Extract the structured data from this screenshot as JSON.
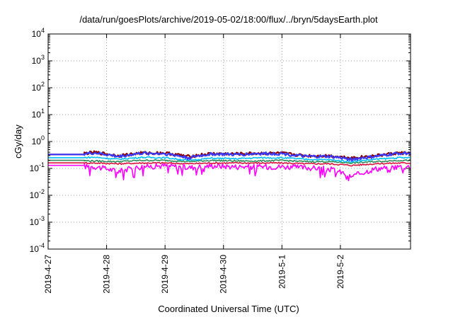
{
  "chart_data": {
    "type": "line",
    "title": "/data/run/goesPlots/archive/2019-05-02/18:00/flux/../bryn/5daysEarth.plot",
    "xlabel": "Coordinated Universal Time (UTC)",
    "ylabel": "cGy/day",
    "yscale": "log",
    "ylim": [
      0.0001,
      10000
    ],
    "xlim": [
      0,
      6.2
    ],
    "grid": true,
    "legend": "none",
    "x_ticks": [
      {
        "value": 0,
        "label": "2019-4-27"
      },
      {
        "value": 1,
        "label": "2019-4-28"
      },
      {
        "value": 2,
        "label": "2019-4-29"
      },
      {
        "value": 3,
        "label": "2019-4-30"
      },
      {
        "value": 4,
        "label": "2019-5-1"
      },
      {
        "value": 5,
        "label": "2019-5-2"
      }
    ],
    "y_ticks": [
      {
        "value": 0.0001,
        "base": "10",
        "exp": "-4"
      },
      {
        "value": 0.001,
        "base": "10",
        "exp": "-3"
      },
      {
        "value": 0.01,
        "base": "10",
        "exp": "-2"
      },
      {
        "value": 0.1,
        "base": "10",
        "exp": "-1"
      },
      {
        "value": 1,
        "base": "10",
        "exp": "0"
      },
      {
        "value": 10,
        "base": "10",
        "exp": "1"
      },
      {
        "value": 100,
        "base": "10",
        "exp": "2"
      },
      {
        "value": 1000,
        "base": "10",
        "exp": "3"
      },
      {
        "value": 10000,
        "base": "10",
        "exp": "4"
      }
    ],
    "series": [
      {
        "color": "#ff00ff",
        "baseline": 0.13,
        "x": [
          0,
          0.4,
          0.8,
          1.2,
          1.6,
          2.0,
          2.4,
          2.8,
          3.2,
          3.6,
          4.0,
          4.4,
          4.8,
          5.2,
          5.6,
          6.0,
          6.2
        ],
        "y": [
          0.13,
          0.13,
          0.12,
          0.08,
          0.12,
          0.13,
          0.11,
          0.13,
          0.12,
          0.12,
          0.12,
          0.11,
          0.1,
          0.05,
          0.1,
          0.12,
          0.12
        ]
      },
      {
        "color": "#dc143c",
        "baseline": 0.16,
        "x": [
          0,
          0.4,
          0.8,
          1.2,
          1.6,
          2.0,
          2.4,
          2.8,
          3.2,
          3.6,
          4.0,
          4.4,
          4.8,
          5.2,
          5.6,
          6.0,
          6.2
        ],
        "y": [
          0.16,
          0.16,
          0.16,
          0.15,
          0.16,
          0.16,
          0.15,
          0.16,
          0.16,
          0.16,
          0.16,
          0.15,
          0.15,
          0.13,
          0.15,
          0.16,
          0.16
        ]
      },
      {
        "color": "#2e8b57",
        "baseline": 0.2,
        "x": [
          0,
          0.4,
          0.8,
          1.2,
          1.6,
          2.0,
          2.4,
          2.8,
          3.2,
          3.6,
          4.0,
          4.4,
          4.8,
          5.2,
          5.6,
          6.0,
          6.2
        ],
        "y": [
          0.2,
          0.2,
          0.19,
          0.18,
          0.2,
          0.2,
          0.18,
          0.2,
          0.19,
          0.19,
          0.2,
          0.18,
          0.18,
          0.16,
          0.18,
          0.2,
          0.2
        ]
      },
      {
        "color": "#00bfff",
        "baseline": 0.25,
        "x": [
          0,
          0.4,
          0.8,
          1.2,
          1.6,
          2.0,
          2.4,
          2.8,
          3.2,
          3.6,
          4.0,
          4.4,
          4.8,
          5.2,
          5.6,
          6.0,
          6.2
        ],
        "y": [
          0.25,
          0.25,
          0.26,
          0.22,
          0.26,
          0.25,
          0.2,
          0.24,
          0.23,
          0.25,
          0.25,
          0.22,
          0.21,
          0.18,
          0.22,
          0.25,
          0.25
        ]
      },
      {
        "color": "#8b0000",
        "baseline": 0.33,
        "x": [
          0,
          0.4,
          0.8,
          1.2,
          1.6,
          2.0,
          2.4,
          2.8,
          3.2,
          3.6,
          4.0,
          4.4,
          4.8,
          5.2,
          5.6,
          6.0,
          6.2
        ],
        "y": [
          0.33,
          0.33,
          0.4,
          0.3,
          0.38,
          0.38,
          0.28,
          0.36,
          0.35,
          0.37,
          0.37,
          0.3,
          0.3,
          0.25,
          0.3,
          0.38,
          0.38
        ]
      },
      {
        "color": "#3a3aff",
        "baseline": 0.33,
        "x": [
          0,
          0.4,
          0.8,
          1.2,
          1.6,
          2.0,
          2.4,
          2.8,
          3.2,
          3.6,
          4.0,
          4.4,
          4.8,
          5.2,
          5.6,
          6.0,
          6.2
        ],
        "y": [
          0.33,
          0.33,
          0.38,
          0.28,
          0.37,
          0.36,
          0.25,
          0.35,
          0.33,
          0.36,
          0.36,
          0.28,
          0.28,
          0.22,
          0.28,
          0.37,
          0.37
        ]
      }
    ]
  }
}
